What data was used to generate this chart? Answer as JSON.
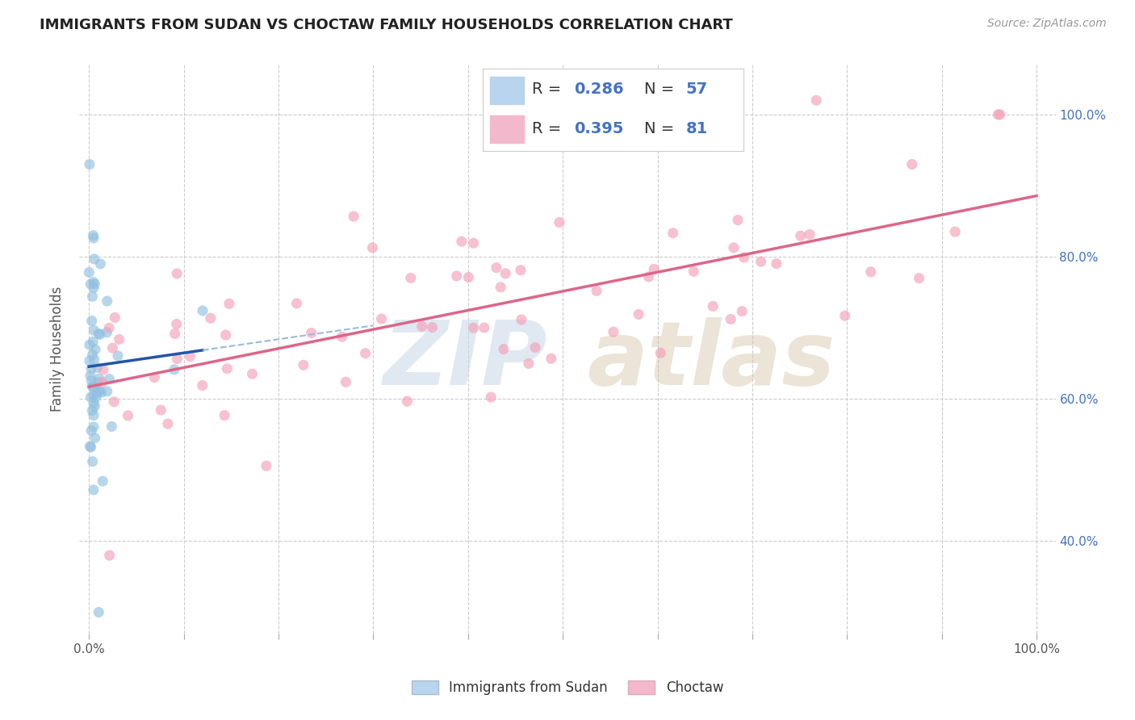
{
  "title": "IMMIGRANTS FROM SUDAN VS CHOCTAW FAMILY HOUSEHOLDS CORRELATION CHART",
  "source": "Source: ZipAtlas.com",
  "ylabel": "Family Households",
  "blue_R": "0.286",
  "blue_N": "57",
  "pink_R": "0.395",
  "pink_N": "81",
  "blue_color": "#92c0e0",
  "pink_color": "#f4a0b8",
  "blue_line_color": "#2255aa",
  "blue_dash_color": "#99bbdd",
  "pink_line_color": "#dd6688",
  "bg_color": "#ffffff",
  "grid_color": "#cccccc",
  "legend_value_color": "#4472c4",
  "legend_label_color": "#333333",
  "right_tick_color": "#4472c4",
  "ytick_labels": [
    "40.0%",
    "60.0%",
    "80.0%",
    "100.0%"
  ],
  "ytick_values": [
    0.4,
    0.6,
    0.8,
    1.0
  ],
  "xtick_only_first_last": [
    "0.0%",
    "100.0%"
  ],
  "xlim": [
    -0.01,
    1.02
  ],
  "ylim": [
    0.27,
    1.07
  ]
}
